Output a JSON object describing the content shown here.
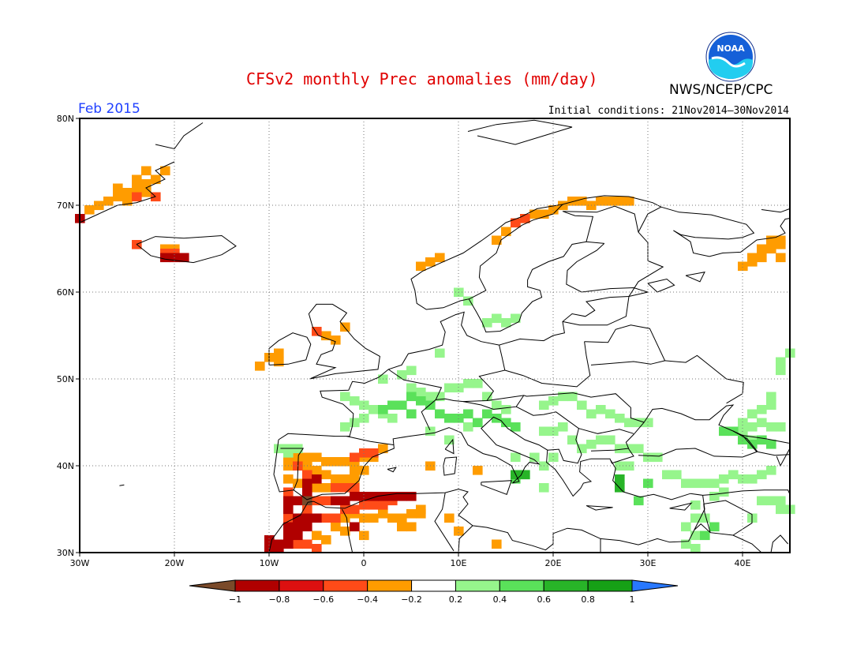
{
  "header": {
    "title": "CFSv2 monthly Prec anomalies (mm/day)",
    "agency": "NWS/NCEP/CPC",
    "logo_text": "NOAA",
    "month_label": "Feb 2015",
    "initial_conditions": "Initial conditions: 21Nov2014–30Nov2014"
  },
  "map": {
    "lon_range": [
      -30,
      45
    ],
    "lat_range": [
      30,
      80
    ],
    "lat_labels": [
      "30N",
      "40N",
      "50N",
      "60N",
      "70N",
      "80N"
    ],
    "lon_labels": [
      "30W",
      "20W",
      "10W",
      "0",
      "10E",
      "20E",
      "30E",
      "40E"
    ],
    "gridline_style": "dotted"
  },
  "legend": {
    "labels": [
      "−1",
      "−0.8",
      "−0.6",
      "−0.4",
      "−0.2",
      "0.2",
      "0.4",
      "0.6",
      "0.8",
      "1"
    ],
    "colors": [
      "#7a4a2a",
      "#b00000",
      "#dc1010",
      "#ff4b18",
      "#ff9c00",
      "#ffffff",
      "#96f58c",
      "#5ae15a",
      "#28b428",
      "#16a016",
      "#2878ff"
    ]
  },
  "anomalies": [
    {
      "category": "-0.4",
      "color": "#ff9c00",
      "cells": [
        [
          -29,
          69.5
        ],
        [
          -28,
          70
        ],
        [
          -27,
          70.5
        ],
        [
          -26,
          71
        ],
        [
          -25,
          71.5
        ],
        [
          -24,
          72
        ],
        [
          -23,
          72.5
        ],
        [
          -22,
          73
        ],
        [
          -24,
          73
        ],
        [
          -26,
          72
        ],
        [
          -23,
          71.5
        ],
        [
          -25,
          70.5
        ],
        [
          -21,
          74
        ],
        [
          -23,
          74
        ],
        [
          -20,
          65
        ],
        [
          -21,
          65
        ],
        [
          -4,
          55
        ],
        [
          -2,
          56
        ],
        [
          -3,
          54.5
        ],
        [
          -9,
          53
        ],
        [
          -10,
          52.5
        ],
        [
          -11,
          51.5
        ],
        [
          -9,
          52
        ],
        [
          7,
          40
        ],
        [
          12,
          39.5
        ],
        [
          6,
          63
        ],
        [
          7,
          63.5
        ],
        [
          8,
          64
        ],
        [
          14,
          66
        ],
        [
          15,
          67
        ],
        [
          16,
          68
        ],
        [
          17,
          68.5
        ],
        [
          18,
          69
        ],
        [
          19,
          69
        ],
        [
          20,
          69.5
        ],
        [
          21,
          70
        ],
        [
          22,
          70.5
        ],
        [
          23,
          70.5
        ],
        [
          24,
          70
        ],
        [
          25,
          70.5
        ],
        [
          26,
          70.5
        ],
        [
          27,
          70.5
        ],
        [
          28,
          70.5
        ],
        [
          40,
          63
        ],
        [
          41,
          64
        ],
        [
          42,
          65
        ],
        [
          43,
          65
        ],
        [
          44,
          64
        ],
        [
          44,
          66
        ],
        [
          44,
          65.5
        ],
        [
          43,
          66
        ],
        [
          42,
          64
        ],
        [
          41,
          63.5
        ],
        [
          9,
          34
        ],
        [
          10,
          32.5
        ],
        [
          14,
          31
        ],
        [
          -8,
          41
        ],
        [
          -7,
          41
        ],
        [
          -6,
          41
        ],
        [
          -5,
          41
        ],
        [
          -4,
          40.5
        ],
        [
          -3,
          40.5
        ],
        [
          -2,
          40.5
        ],
        [
          -1,
          40.5
        ],
        [
          0,
          41
        ],
        [
          -8,
          40
        ],
        [
          -6,
          40
        ],
        [
          -5,
          39.5
        ],
        [
          -4,
          39
        ],
        [
          -3,
          38.5
        ],
        [
          -2,
          38.5
        ],
        [
          -1,
          38.5
        ],
        [
          -8,
          38.5
        ],
        [
          -7,
          38
        ],
        [
          -6,
          38
        ],
        [
          -5,
          37.5
        ],
        [
          -4,
          37.5
        ],
        [
          -3,
          38
        ],
        [
          -1,
          39.5
        ],
        [
          0,
          39.5
        ],
        [
          1,
          41
        ],
        [
          2,
          42
        ],
        [
          -2,
          34
        ],
        [
          -1,
          34.5
        ],
        [
          0,
          34
        ],
        [
          1,
          34
        ],
        [
          2,
          34.5
        ],
        [
          3,
          34
        ],
        [
          4,
          34
        ],
        [
          5,
          34.5
        ],
        [
          6,
          34.5
        ],
        [
          -3,
          33
        ],
        [
          -2,
          32.5
        ],
        [
          -1,
          33
        ],
        [
          0,
          32
        ],
        [
          -5,
          32
        ],
        [
          -4,
          31.5
        ],
        [
          4,
          33
        ],
        [
          5,
          33
        ],
        [
          6,
          35
        ]
      ]
    },
    {
      "category": "-0.6",
      "color": "#ff4b18",
      "cells": [
        [
          -24,
          71
        ],
        [
          -22,
          71
        ],
        [
          -24,
          65.5
        ],
        [
          -21,
          64.5
        ],
        [
          -20,
          64.5
        ],
        [
          -5,
          55.5
        ],
        [
          16,
          68
        ],
        [
          17,
          68.5
        ],
        [
          -7,
          40
        ],
        [
          -6,
          39
        ],
        [
          -3,
          37.5
        ],
        [
          -1,
          37.5
        ],
        [
          -2,
          37.5
        ],
        [
          -1,
          41
        ],
        [
          0,
          41.5
        ],
        [
          1,
          41.5
        ],
        [
          -8,
          37
        ],
        [
          -4,
          36
        ],
        [
          -5,
          36
        ],
        [
          -6,
          35
        ],
        [
          -1,
          35
        ],
        [
          -2,
          35
        ],
        [
          0,
          35.5
        ],
        [
          1,
          35.5
        ],
        [
          2,
          35.5
        ],
        [
          3,
          36
        ],
        [
          -8,
          34
        ],
        [
          -4,
          34
        ],
        [
          -3,
          34
        ],
        [
          -6,
          31
        ],
        [
          -7,
          31
        ],
        [
          -5,
          30.5
        ]
      ]
    },
    {
      "category": "-0.8",
      "color": "#b00000",
      "cells": [
        [
          -30,
          68.5
        ],
        [
          -20,
          64
        ],
        [
          -21,
          64
        ],
        [
          -19,
          64
        ],
        [
          -6,
          37
        ],
        [
          -7,
          36
        ],
        [
          -8,
          35
        ],
        [
          -6,
          34
        ],
        [
          -7,
          33
        ],
        [
          -8,
          33
        ],
        [
          -7,
          32
        ],
        [
          -6,
          33
        ],
        [
          -8,
          32
        ],
        [
          -9,
          31
        ],
        [
          -10,
          30.5
        ],
        [
          -9,
          30.5
        ],
        [
          -8,
          31
        ],
        [
          -10,
          31.5
        ],
        [
          -5,
          34
        ],
        [
          -7,
          34
        ],
        [
          -8,
          36
        ],
        [
          -3,
          36
        ],
        [
          -2,
          36
        ],
        [
          -1,
          36.5
        ],
        [
          0,
          36.5
        ],
        [
          1,
          36.5
        ],
        [
          2,
          36.5
        ],
        [
          4,
          36.5
        ],
        [
          3,
          36.5
        ],
        [
          5,
          36.5
        ],
        [
          -1,
          33
        ],
        [
          -6,
          38
        ],
        [
          -5,
          38.5
        ]
      ]
    },
    {
      "category": "-1",
      "color": "#7a4a2a",
      "cells": [
        [
          -6,
          36
        ]
      ]
    },
    {
      "category": "0.2",
      "color": "#96f58c",
      "cells": [
        [
          10,
          60
        ],
        [
          11,
          59
        ],
        [
          13,
          56.5
        ],
        [
          14,
          57
        ],
        [
          15,
          56.5
        ],
        [
          16,
          57
        ],
        [
          8,
          53
        ],
        [
          5,
          51
        ],
        [
          4,
          50.5
        ],
        [
          2,
          50
        ],
        [
          -2,
          48
        ],
        [
          -1,
          47.5
        ],
        [
          0,
          47
        ],
        [
          1,
          46.5
        ],
        [
          2,
          46
        ],
        [
          3,
          45.5
        ],
        [
          -1,
          45
        ],
        [
          -2,
          44.5
        ],
        [
          0,
          45.5
        ],
        [
          5,
          49
        ],
        [
          6,
          48.5
        ],
        [
          7,
          48
        ],
        [
          8,
          48
        ],
        [
          9,
          49
        ],
        [
          10,
          49
        ],
        [
          11,
          49.5
        ],
        [
          12,
          49.5
        ],
        [
          13,
          48
        ],
        [
          14,
          47
        ],
        [
          15,
          46.5
        ],
        [
          11,
          44.5
        ],
        [
          9,
          43
        ],
        [
          7,
          44
        ],
        [
          19,
          47
        ],
        [
          20,
          47.5
        ],
        [
          21,
          48
        ],
        [
          22,
          48
        ],
        [
          23,
          47
        ],
        [
          24,
          46
        ],
        [
          25,
          46.5
        ],
        [
          26,
          46
        ],
        [
          27,
          45.5
        ],
        [
          28,
          45
        ],
        [
          29,
          45
        ],
        [
          30,
          45
        ],
        [
          19,
          44
        ],
        [
          20,
          44
        ],
        [
          21,
          44.5
        ],
        [
          22,
          43
        ],
        [
          23,
          42
        ],
        [
          24,
          42.5
        ],
        [
          25,
          43
        ],
        [
          26,
          43
        ],
        [
          27,
          42
        ],
        [
          28,
          42
        ],
        [
          29,
          42
        ],
        [
          30,
          41
        ],
        [
          31,
          41
        ],
        [
          32,
          39
        ],
        [
          33,
          39
        ],
        [
          34,
          38
        ],
        [
          35,
          38
        ],
        [
          36,
          38
        ],
        [
          37,
          38
        ],
        [
          38,
          38.5
        ],
        [
          39,
          39
        ],
        [
          40,
          38.5
        ],
        [
          41,
          38.5
        ],
        [
          42,
          39
        ],
        [
          43,
          39.5
        ],
        [
          38,
          37
        ],
        [
          37,
          36.5
        ],
        [
          35,
          35.5
        ],
        [
          35,
          34
        ],
        [
          36,
          34
        ],
        [
          34,
          33
        ],
        [
          35,
          32
        ],
        [
          34,
          31
        ],
        [
          35,
          30.5
        ],
        [
          40,
          44
        ],
        [
          41,
          44.5
        ],
        [
          42,
          45
        ],
        [
          43,
          44.5
        ],
        [
          44,
          44.5
        ],
        [
          42,
          43
        ],
        [
          41,
          43
        ],
        [
          40,
          45
        ],
        [
          41,
          46
        ],
        [
          42,
          46.5
        ],
        [
          43,
          47
        ],
        [
          43,
          48
        ],
        [
          44,
          51
        ],
        [
          44,
          52
        ],
        [
          45,
          53
        ],
        [
          41,
          34
        ],
        [
          42,
          36
        ],
        [
          43,
          36
        ],
        [
          44,
          36
        ],
        [
          45,
          35
        ],
        [
          44,
          35
        ],
        [
          -9,
          42
        ],
        [
          -8,
          42
        ],
        [
          -7,
          42
        ],
        [
          -8,
          41.5
        ],
        [
          18,
          41
        ],
        [
          19,
          40
        ],
        [
          20,
          41
        ],
        [
          16,
          39
        ],
        [
          19,
          37.5
        ],
        [
          16,
          41
        ],
        [
          28,
          40
        ],
        [
          27,
          40
        ]
      ]
    },
    {
      "category": "0.4",
      "color": "#5ae15a",
      "cells": [
        [
          5,
          48
        ],
        [
          6,
          47.5
        ],
        [
          7,
          47
        ],
        [
          8,
          46
        ],
        [
          9,
          45.5
        ],
        [
          10,
          45.5
        ],
        [
          11,
          46
        ],
        [
          12,
          45
        ],
        [
          4,
          47
        ],
        [
          3,
          47
        ],
        [
          2,
          46.5
        ],
        [
          5,
          46
        ],
        [
          13,
          46
        ],
        [
          14,
          45.5
        ],
        [
          15,
          45
        ],
        [
          16,
          44.5
        ],
        [
          39,
          44
        ],
        [
          38,
          44
        ],
        [
          40,
          43
        ],
        [
          41,
          42.5
        ],
        [
          42,
          43
        ],
        [
          43,
          42.5
        ],
        [
          16,
          38.5
        ],
        [
          17,
          39
        ],
        [
          30,
          38
        ],
        [
          29,
          36
        ],
        [
          36,
          32
        ],
        [
          37,
          33
        ]
      ]
    },
    {
      "category": "0.6",
      "color": "#28b428",
      "cells": [
        [
          16,
          39
        ],
        [
          17,
          39
        ],
        [
          27,
          38.5
        ],
        [
          27,
          37.5
        ]
      ]
    }
  ]
}
